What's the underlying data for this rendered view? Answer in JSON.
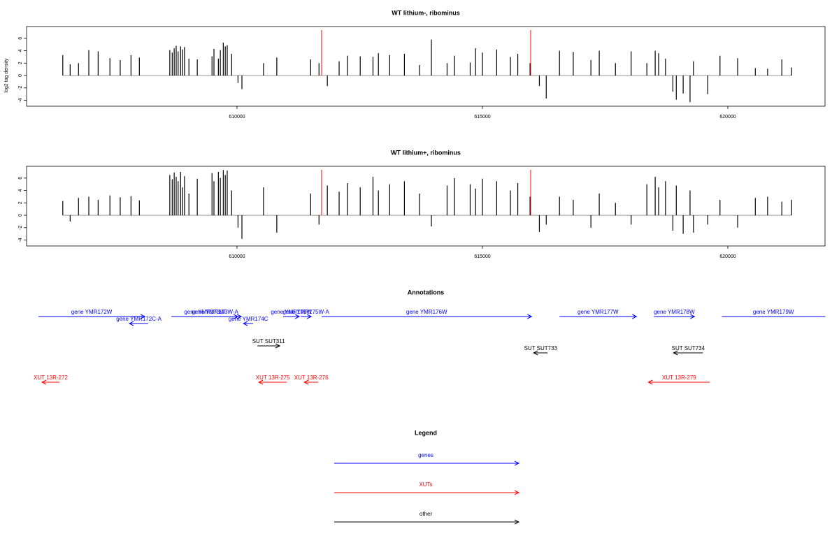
{
  "chart_data": [
    {
      "type": "bar",
      "title": "WT lithium-, ribominus",
      "y_label": "log2 tag density",
      "xlim": [
        605712,
        621980
      ],
      "ylim": [
        -4.95,
        7.9
      ],
      "xticks": [
        610000,
        615000,
        620000
      ],
      "yticks": [
        -4,
        -2,
        0,
        2,
        4,
        6
      ],
      "color": "#000000",
      "baseline_color": "#999999",
      "marker_color": "#ff0000",
      "markers": [
        611724,
        615983
      ],
      "x": [
        606450,
        606600,
        606770,
        606980,
        607170,
        607410,
        607620,
        607840,
        608010,
        608630,
        608680,
        608720,
        608760,
        608800,
        608850,
        608890,
        608930,
        609020,
        609190,
        609490,
        609530,
        609620,
        609660,
        609720,
        609760,
        609800,
        609890,
        610020,
        610100,
        610540,
        610810,
        611500,
        611670,
        611840,
        612080,
        612250,
        612510,
        612770,
        612880,
        613110,
        613410,
        613720,
        613960,
        614280,
        614430,
        614750,
        614860,
        615000,
        615290,
        615570,
        615720,
        615970,
        616160,
        616300,
        616570,
        616850,
        617210,
        617380,
        617710,
        618030,
        618350,
        618520,
        618590,
        618730,
        618880,
        618950,
        619090,
        619230,
        619300,
        619590,
        619840,
        620200,
        620560,
        620810,
        621100,
        621300
      ],
      "values": [
        3.3,
        1.8,
        2,
        4.1,
        3.9,
        2.8,
        2.5,
        3.3,
        2.9,
        4.1,
        3.7,
        4.4,
        4.8,
        3.9,
        4.7,
        4.2,
        4.6,
        2.7,
        2.6,
        3.1,
        4.3,
        2.7,
        4.1,
        5.3,
        4.7,
        4.9,
        3.5,
        -1.2,
        -2.2,
        2,
        2.9,
        2.6,
        2,
        -1.7,
        2.3,
        3.2,
        3.1,
        3,
        3.6,
        3.3,
        3.5,
        1.7,
        5.8,
        2,
        3.2,
        2.1,
        4.4,
        3.7,
        4.2,
        3,
        3.5,
        2,
        -1.7,
        -3.7,
        4,
        3.8,
        2.5,
        4,
        2,
        3.9,
        2,
        4,
        3.6,
        2.7,
        -2.6,
        -3.9,
        -2.9,
        -4.3,
        2.3,
        -3,
        3.2,
        2.8,
        1.2,
        1.1,
        2.6,
        1.3
      ]
    },
    {
      "type": "bar",
      "title": "WT lithium+, ribominus",
      "xlim": [
        605712,
        621980
      ],
      "ylim": [
        -4.95,
        7.9
      ],
      "xticks": [
        610000,
        615000,
        620000
      ],
      "yticks": [
        -4,
        -2,
        0,
        2,
        4,
        6
      ],
      "color": "#000000",
      "baseline_color": "#999999",
      "marker_color": "#ff0000",
      "markers": [
        611724,
        615983
      ],
      "x": [
        606450,
        606600,
        606770,
        606980,
        607170,
        607410,
        607620,
        607840,
        608010,
        608630,
        608680,
        608720,
        608760,
        608800,
        608850,
        608890,
        608930,
        609020,
        609190,
        609490,
        609530,
        609620,
        609660,
        609720,
        609760,
        609800,
        609890,
        610020,
        610100,
        610540,
        610810,
        611500,
        611670,
        611840,
        612080,
        612250,
        612510,
        612770,
        612880,
        613110,
        613410,
        613720,
        613960,
        614280,
        614430,
        614750,
        614860,
        615000,
        615290,
        615570,
        615720,
        615970,
        616160,
        616300,
        616570,
        616850,
        617210,
        617380,
        617710,
        618030,
        618350,
        618520,
        618590,
        618730,
        618880,
        618950,
        619090,
        619230,
        619300,
        619590,
        619840,
        620200,
        620560,
        620810,
        621100,
        621300
      ],
      "values": [
        2.3,
        -1,
        2.8,
        3,
        2.5,
        3.2,
        2.9,
        3.1,
        2.4,
        6.5,
        5.8,
        6.9,
        6.2,
        5.5,
        7,
        4.5,
        6.3,
        3.5,
        5.9,
        6.8,
        5.5,
        7,
        6,
        7.3,
        6.5,
        7.2,
        4,
        -2,
        -3.8,
        4.5,
        -2.8,
        3.5,
        -1.5,
        4.8,
        3.8,
        5.2,
        4.5,
        6.2,
        4,
        5,
        5.5,
        3.5,
        -1.8,
        4.8,
        6,
        5,
        4.3,
        5.9,
        5.5,
        4,
        5.2,
        3,
        -2.7,
        -1.5,
        3,
        2.5,
        -2,
        3.5,
        2,
        -1.5,
        5,
        6.2,
        4.5,
        5.5,
        -2.5,
        4.8,
        -3,
        4,
        -2.8,
        -1.5,
        2.5,
        -2,
        2.8,
        3,
        2.2,
        2.5
      ]
    },
    {
      "type": "annotation",
      "title": "Annotations",
      "xlim": [
        605712,
        621980
      ],
      "features": [
        {
          "label": "gene YMR172W",
          "start": 605955,
          "end": 608121,
          "strand": "+",
          "color": "#0000ff"
        },
        {
          "label": "gene YMR172C-A",
          "start": 607807,
          "end": 608192,
          "strand": "-",
          "color": "#0000ff"
        },
        {
          "label": "gene YMR173W",
          "start": 608662,
          "end": 610016,
          "strand": "+",
          "color": "#0000ff"
        },
        {
          "label": "gene YMR173W-A",
          "start": 609019,
          "end": 610087,
          "strand": "+",
          "color": "#0000ff"
        },
        {
          "label": "gene YMR174C",
          "start": 610130,
          "end": 610330,
          "strand": "-",
          "color": "#0000ff"
        },
        {
          "label": "gene YMR175W",
          "start": 610942,
          "end": 611270,
          "strand": "+",
          "color": "#0000ff"
        },
        {
          "label": "gene YMR175W-A",
          "start": 611299,
          "end": 611512,
          "strand": "+",
          "color": "#0000ff"
        },
        {
          "label": "gene YMR176W",
          "start": 611726,
          "end": 616001,
          "strand": "+",
          "color": "#0000ff"
        },
        {
          "label": "gene YMR177W",
          "start": 616571,
          "end": 618139,
          "strand": "+",
          "color": "#0000ff"
        },
        {
          "label": "gene YMR178W",
          "start": 618495,
          "end": 619321,
          "strand": "+",
          "color": "#0000ff"
        },
        {
          "label": "gene YMR179W",
          "start": 619877,
          "end": 621986,
          "strand": "+",
          "color": "#0000ff"
        },
        {
          "label": "SUT SUT311",
          "start": 610415,
          "end": 610871,
          "strand": "+",
          "color": "#000000"
        },
        {
          "label": "SUT SUT733",
          "start": 616044,
          "end": 616329,
          "strand": "-",
          "color": "#000000"
        },
        {
          "label": "SUT SUT734",
          "start": 618894,
          "end": 619492,
          "strand": "-",
          "color": "#000000"
        },
        {
          "label": "XUT 13R-272",
          "start": 606026,
          "end": 606382,
          "strand": "-",
          "color": "#ff0000"
        },
        {
          "label": "XUT 13R-275",
          "start": 610444,
          "end": 611014,
          "strand": "-",
          "color": "#ff0000"
        },
        {
          "label": "XUT 13R-276",
          "start": 611370,
          "end": 611655,
          "strand": "-",
          "color": "#ff0000"
        },
        {
          "label": "XUT 13R-279",
          "start": 618381,
          "end": 619635,
          "strand": "-",
          "color": "#ff0000"
        }
      ]
    },
    {
      "type": "legend",
      "title": "Legend",
      "items": [
        {
          "name": "genes",
          "color": "#0000ff"
        },
        {
          "name": "XUTs",
          "color": "#ff0000"
        },
        {
          "name": "other",
          "color": "#000000"
        }
      ]
    }
  ]
}
